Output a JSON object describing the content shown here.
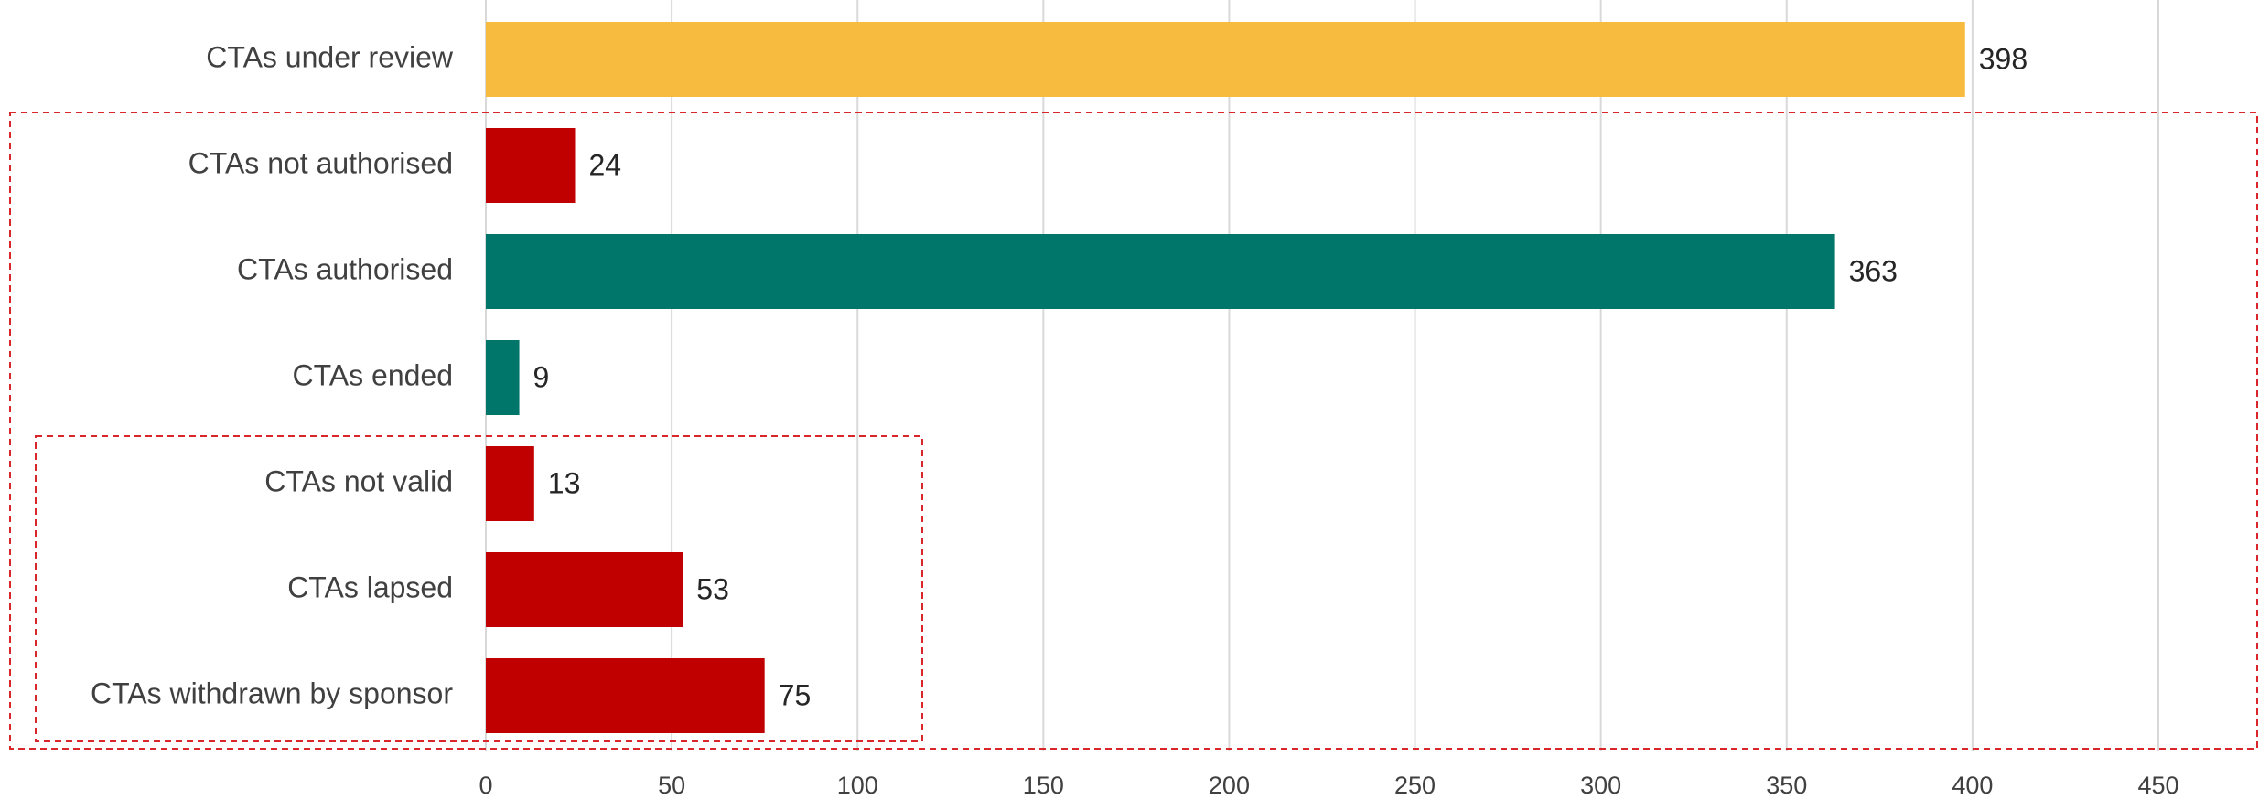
{
  "chart_data": {
    "type": "hbar",
    "categories": [
      "CTAs under review",
      "CTAs not authorised",
      "CTAs authorised",
      "CTAs ended",
      "CTAs not valid",
      "CTAs lapsed",
      "CTAs withdrawn by sponsor"
    ],
    "values": [
      398,
      24,
      363,
      9,
      13,
      53,
      75
    ],
    "colors": [
      "#F6BB3F",
      "#C00000",
      "#00756A",
      "#00756A",
      "#C00000",
      "#C00000",
      "#C00000"
    ],
    "xlim": [
      0,
      450
    ],
    "xticks": [
      0,
      50,
      100,
      150,
      200,
      250,
      300,
      350,
      400,
      450
    ],
    "grid": true
  }
}
